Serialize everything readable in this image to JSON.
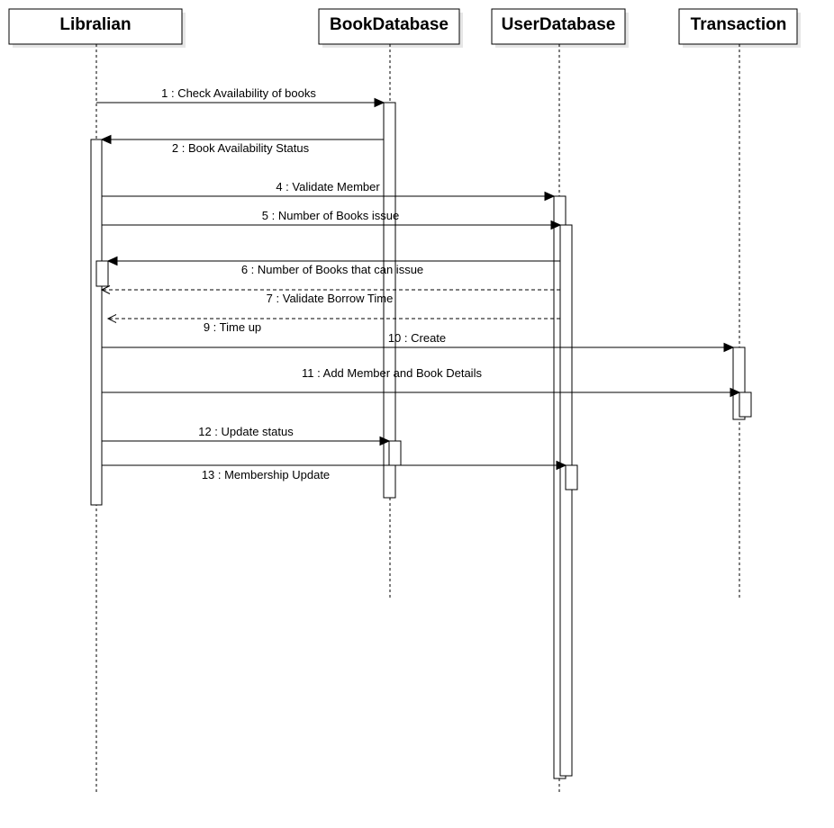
{
  "diagram": {
    "type": "sequence",
    "lifelines": [
      {
        "id": "librarian",
        "label": "Libralian"
      },
      {
        "id": "bookdb",
        "label": "BookDatabase"
      },
      {
        "id": "userdb",
        "label": "UserDatabase"
      },
      {
        "id": "transaction",
        "label": "Transaction"
      }
    ],
    "messages": [
      {
        "id": "m1",
        "label": "1 : Check Availability of books",
        "from": "librarian",
        "to": "bookdb",
        "style": "sync"
      },
      {
        "id": "m2",
        "label": "2 : Book Availability Status",
        "from": "bookdb",
        "to": "librarian",
        "style": "sync"
      },
      {
        "id": "m4",
        "label": "4 : Validate Member",
        "from": "librarian",
        "to": "userdb",
        "style": "sync"
      },
      {
        "id": "m5",
        "label": "5 : Number of Books issue",
        "from": "librarian",
        "to": "userdb",
        "style": "sync"
      },
      {
        "id": "m6",
        "label": "6 : Number of Books that can issue",
        "from": "userdb",
        "to": "librarian",
        "style": "sync"
      },
      {
        "id": "m7",
        "label": "7 : Validate Borrow Time",
        "from": "userdb",
        "to": "librarian",
        "style": "return"
      },
      {
        "id": "m9",
        "label": "9 : Time up",
        "from": "userdb",
        "to": "librarian",
        "style": "return"
      },
      {
        "id": "m10",
        "label": "10 : Create",
        "from": "librarian",
        "to": "transaction",
        "style": "sync"
      },
      {
        "id": "m11",
        "label": "11 : Add Member and Book Details",
        "from": "librarian",
        "to": "transaction",
        "style": "sync"
      },
      {
        "id": "m12",
        "label": "12 : Update status",
        "from": "librarian",
        "to": "bookdb",
        "style": "sync"
      },
      {
        "id": "m13",
        "label": "13 : Membership Update",
        "from": "librarian",
        "to": "userdb",
        "style": "sync"
      }
    ]
  }
}
